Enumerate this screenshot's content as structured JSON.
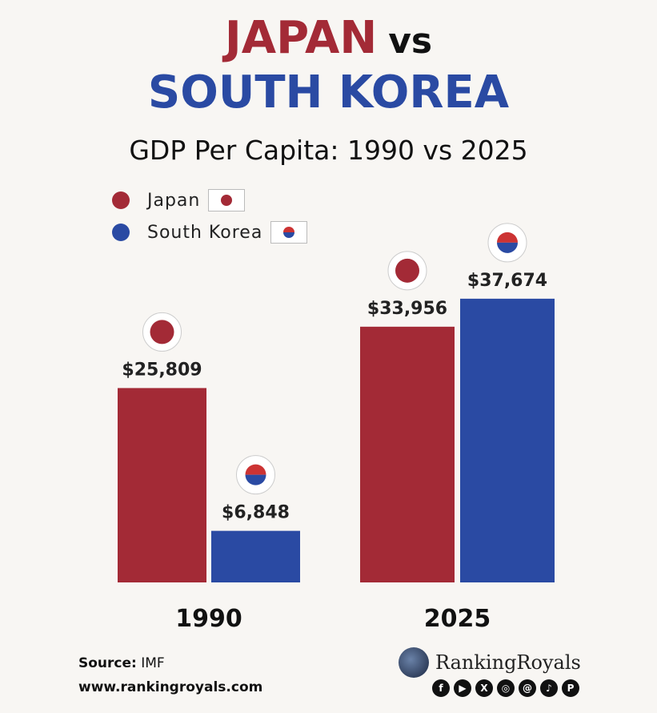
{
  "header": {
    "title_country1": "JAPAN",
    "title_vs": "vs",
    "title_country2": "SOUTH KOREA",
    "subtitle": "GDP Per Capita: 1990 vs 2025"
  },
  "colors": {
    "japan": "#a32a36",
    "south_korea": "#2a4aa3"
  },
  "chart_data": {
    "type": "bar",
    "title": "GDP Per Capita: 1990 vs 2025",
    "categories": [
      "1990",
      "2025"
    ],
    "series": [
      {
        "name": "Japan",
        "values": [
          25809,
          33956
        ],
        "labels": [
          "$25,809",
          "$33,956"
        ]
      },
      {
        "name": "South Korea",
        "values": [
          6848,
          37674
        ],
        "labels": [
          "$6,848",
          "$37,674"
        ]
      }
    ],
    "xlabel": "",
    "ylabel": "",
    "legend": "top-left",
    "grid": false
  },
  "footer": {
    "source_label": "Source:",
    "source_value": "IMF",
    "url": "www.rankingroyals.com",
    "brand": "RankingRoyals",
    "socials": [
      {
        "icon": "facebook-icon",
        "glyph": "f"
      },
      {
        "icon": "youtube-icon",
        "glyph": "▶"
      },
      {
        "icon": "x-icon",
        "glyph": "X"
      },
      {
        "icon": "instagram-icon",
        "glyph": "◎"
      },
      {
        "icon": "threads-icon",
        "glyph": "@"
      },
      {
        "icon": "tiktok-icon",
        "glyph": "♪"
      },
      {
        "icon": "pinterest-icon",
        "glyph": "P"
      }
    ]
  }
}
